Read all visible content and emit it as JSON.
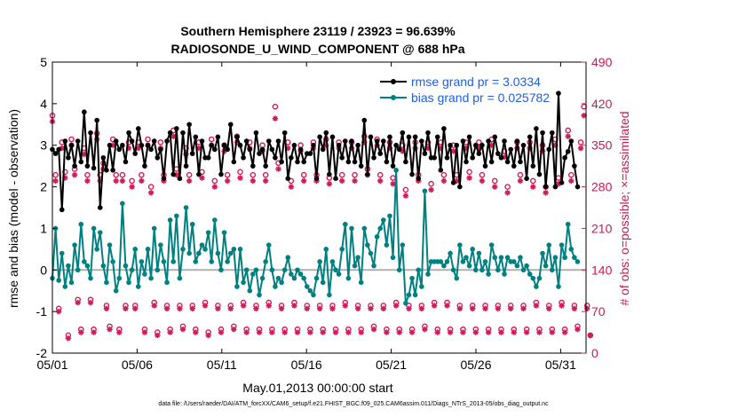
{
  "chart_data": {
    "type": "line",
    "title": "Southern Hemisphere 23119 / 23923 = 96.639%",
    "subtitle": "RADIOSONDE_U_WIND_COMPONENT @ 688 hPa",
    "xlabel": "May.01,2013 00:00:00 start",
    "ylabel": "rmse and bias (model - observation)",
    "ylabel_right": "# of obs: o=possible; ×=assimilated",
    "footer": "data file: /Users/raeder/DAI/ATM_forcXX/CAM6_setup/f.e21.FHIST_BGC.f09_025.CAM6assim.011/Diags_NTrS_2013-05/obs_diag_output.nc",
    "ylim": [
      -2,
      5
    ],
    "ylim_right": [
      0,
      490
    ],
    "xlim": [
      0,
      31.5
    ],
    "x_ticks": [
      0,
      5,
      10,
      15,
      20,
      25,
      30
    ],
    "x_tick_labels": [
      "05/01",
      "05/06",
      "05/11",
      "05/16",
      "05/21",
      "05/26",
      "05/31"
    ],
    "y_ticks": [
      -2,
      -1,
      0,
      1,
      2,
      3,
      4,
      5
    ],
    "y_tick_labels": [
      "-2",
      "-1",
      "0",
      "1",
      "2",
      "3",
      "4",
      "5"
    ],
    "y_ticks_right": [
      0,
      70,
      140,
      210,
      280,
      350,
      420,
      490
    ],
    "y_tick_labels_right": [
      "0",
      "70",
      "140",
      "210",
      "280",
      "350",
      "420",
      "490"
    ],
    "legend": {
      "position": "top-right",
      "entries": [
        "rmse grand pr = 3.0334",
        "bias grand pr = 0.025782"
      ]
    },
    "colors": {
      "rmse": "#000000",
      "bias": "#008080",
      "obs": "#d01c5b",
      "zero_line": "#b0b0b0"
    },
    "series": [
      {
        "name": "rmse",
        "values": [
          2.9,
          2.8,
          2.9,
          1.45,
          3.1,
          2.7,
          3.0,
          2.5,
          3.1,
          2.6,
          3.8,
          2.5,
          3.3,
          2.45,
          3.6,
          1.5,
          2.7,
          2.4,
          3.0,
          2.4,
          3.1,
          2.9,
          3.0,
          2.6,
          3.3,
          3.1,
          2.8,
          3.4,
          3.0,
          2.5,
          3.0,
          2.9,
          3.1,
          2.7,
          2.9,
          2.2,
          3.1,
          3.3,
          2.3,
          3.4,
          2.2,
          3.3,
          2.5,
          3.5,
          2.8,
          3.2,
          2.3,
          3.1,
          2.7,
          2.7,
          3.0,
          2.9,
          3.2,
          2.3,
          3.0,
          2.9,
          3.5,
          2.6,
          3.2,
          3.0,
          2.7,
          3.1,
          2.9,
          2.5,
          3.3,
          2.8,
          2.9,
          2.5,
          3.1,
          2.9,
          2.7,
          3.1,
          2.6,
          3.3,
          2.2,
          2.7,
          3.0,
          2.6,
          2.9,
          2.6,
          2.8,
          2.8,
          3.0,
          2.2,
          3.2,
          2.9,
          3.3,
          2.3,
          3.2,
          2.2,
          3.0,
          2.7,
          3.1,
          2.6,
          3.1,
          2.6,
          3.0,
          2.5,
          3.6,
          2.3,
          3.2,
          2.7,
          3.1,
          2.8,
          3.1,
          2.6,
          3.2,
          2.5,
          3.0,
          2.9,
          3.3,
          2.6,
          3.2,
          2.3,
          3.2,
          2.2,
          3.1,
          2.8,
          3.3,
          2.7,
          2.7,
          3.2,
          2.4,
          3.4,
          2.7,
          3.0,
          2.1,
          3.0,
          2.0,
          3.1,
          2.6,
          3.2,
          2.7,
          3.0,
          2.8,
          3.0,
          2.5,
          3.1,
          2.6,
          3.2,
          2.8,
          2.7,
          3.1,
          2.6,
          2.9,
          2.5,
          3.1,
          2.6,
          3.0,
          2.2,
          3.2,
          2.5,
          3.4,
          2.3,
          3.3,
          2.0,
          2.9,
          3.3,
          2.0,
          4.25,
          2.1,
          2.7,
          2.85,
          3.1,
          2.5,
          2.0
        ]
      },
      {
        "name": "bias",
        "values": [
          -0.2,
          1.0,
          -0.25,
          0.4,
          -0.4,
          0.1,
          -0.3,
          0.6,
          0.0,
          1.1,
          0.2,
          0.1,
          -0.2,
          1.0,
          0.5,
          0.9,
          0.1,
          -0.3,
          0.6,
          0.2,
          -0.5,
          -0.2,
          1.6,
          0.1,
          -0.3,
          0.0,
          0.5,
          -0.4,
          0.2,
          -0.1,
          0.5,
          -0.2,
          1.0,
          0.0,
          0.6,
          0.2,
          -0.3,
          1.2,
          0.2,
          1.3,
          -0.2,
          0.5,
          1.5,
          0.4,
          1.1,
          0.2,
          0.4,
          0.6,
          0.5,
          0.9,
          0.2,
          1.2,
          0.4,
          0.0,
          0.9,
          0.2,
          0.4,
          0.5,
          -0.4,
          0.5,
          -0.3,
          0.0,
          -0.5,
          -0.1,
          0.0,
          -0.6,
          -0.2,
          0.2,
          0.6,
          0.0,
          -0.4,
          -0.2,
          -0.3,
          0.0,
          0.3,
          -0.1,
          -0.2,
          0.0,
          -0.1,
          -0.2,
          -0.4,
          -0.5,
          -0.6,
          -0.2,
          0.2,
          -0.3,
          0.5,
          -0.6,
          0.2,
          0.0,
          -0.1,
          0.5,
          1.1,
          -0.2,
          1.0,
          0.1,
          0.3,
          -0.3,
          1.0,
          0.6,
          0.4,
          0.1,
          0.8,
          1.0,
          1.2,
          0.6,
          1.3,
          0.3,
          2.4,
          0.0,
          0.6,
          -0.8,
          -0.6,
          -0.2,
          -0.6,
          0.0,
          -0.4,
          1.9,
          -0.1,
          0.2,
          0.2,
          0.2,
          0.2,
          0.1,
          0.2,
          0.4,
          0.0,
          -0.2,
          0.6,
          0.2,
          0.3,
          0.1,
          0.5,
          0.0,
          0.4,
          0.0,
          0.2,
          -0.1,
          0.6,
          0.3,
          0.0,
          0.3,
          -0.1,
          0.3,
          0.2,
          0.2,
          0.1,
          0.3,
          0.0,
          0.1,
          -0.1,
          -0.2,
          -0.4,
          -0.2,
          0.4,
          0.1,
          0.6,
          0.0,
          0.3,
          -0.4,
          0.6,
          0.3,
          1.1,
          0.5,
          0.3,
          0.2
        ]
      },
      {
        "name": "obs possible",
        "values": [
          400,
          300,
          75,
          355,
          305,
          30,
          360,
          310,
          90,
          40,
          345,
          300,
          90,
          40,
          370,
          300,
          320,
          80,
          45,
          360,
          300,
          40,
          300,
          80,
          355,
          290,
          80,
          355,
          300,
          40,
          360,
          280,
          85,
          35,
          355,
          300,
          80,
          40,
          375,
          310,
          80,
          45,
          345,
          300,
          80,
          40,
          355,
          305,
          85,
          35,
          360,
          290,
          80,
          40,
          350,
          300,
          80,
          45,
          365,
          305,
          85,
          40,
          355,
          300,
          80,
          40,
          350,
          300,
          85,
          40,
          415,
          320,
          80,
          40,
          355,
          290,
          85,
          40,
          350,
          300,
          80,
          40,
          355,
          300,
          80,
          40,
          360,
          295,
          80,
          40,
          355,
          300,
          85,
          40,
          355,
          300,
          80,
          40,
          365,
          310,
          80,
          45,
          360,
          300,
          80,
          40,
          355,
          295,
          85,
          40,
          350,
          275,
          80,
          40,
          355,
          300,
          80,
          45,
          355,
          285,
          85,
          40,
          355,
          300,
          85,
          40,
          350,
          300,
          80,
          40,
          355,
          305,
          80,
          40,
          355,
          300,
          80,
          40,
          360,
          290,
          80,
          40,
          340,
          280,
          80,
          40,
          355,
          300,
          80,
          40,
          355,
          290,
          85,
          40,
          350,
          280,
          80,
          40,
          360,
          295,
          85,
          40,
          375,
          300,
          80,
          45,
          355,
          415,
          80,
          30
        ]
      },
      {
        "name": "obs assimilated",
        "values": [
          390,
          290,
          70,
          345,
          295,
          25,
          350,
          300,
          85,
          35,
          335,
          290,
          85,
          35,
          360,
          290,
          310,
          75,
          40,
          350,
          290,
          35,
          290,
          75,
          345,
          280,
          75,
          345,
          290,
          35,
          350,
          270,
          80,
          30,
          345,
          290,
          75,
          35,
          365,
          300,
          75,
          40,
          335,
          290,
          75,
          35,
          345,
          295,
          80,
          30,
          350,
          280,
          75,
          35,
          340,
          290,
          75,
          40,
          355,
          295,
          80,
          35,
          345,
          290,
          75,
          35,
          340,
          290,
          80,
          35,
          395,
          310,
          75,
          35,
          345,
          280,
          80,
          35,
          340,
          290,
          75,
          35,
          345,
          290,
          75,
          35,
          350,
          285,
          75,
          35,
          345,
          290,
          80,
          35,
          345,
          290,
          75,
          35,
          355,
          300,
          75,
          40,
          350,
          290,
          75,
          35,
          345,
          285,
          80,
          35,
          340,
          265,
          75,
          35,
          345,
          290,
          75,
          40,
          345,
          275,
          80,
          35,
          345,
          290,
          80,
          35,
          340,
          290,
          75,
          35,
          345,
          295,
          75,
          35,
          345,
          290,
          75,
          35,
          350,
          280,
          75,
          35,
          330,
          270,
          75,
          35,
          345,
          290,
          75,
          35,
          345,
          280,
          80,
          35,
          340,
          270,
          75,
          35,
          350,
          285,
          80,
          35,
          365,
          290,
          75,
          40,
          345,
          400,
          75,
          30
        ]
      }
    ]
  }
}
